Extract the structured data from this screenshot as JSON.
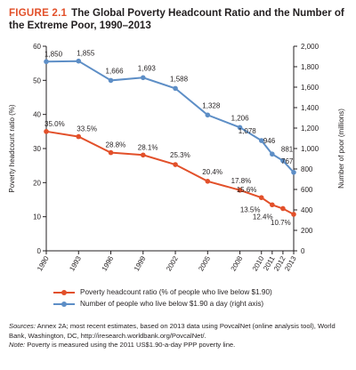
{
  "title": {
    "figure_label": "FIGURE 2.1",
    "text": "The Global Poverty Headcount Ratio and the Number of the Extreme Poor, 1990–2013"
  },
  "legend": {
    "ratio": "Poverty headcount ratio (% of people who live below $1.90)",
    "number": "Number of people who live below $1.90 a day (right axis)"
  },
  "sources": {
    "sources_label": "Sources:",
    "sources_text": "Annex 2A; most recent estimates, based on 2013 data using PovcalNet (online analysis tool), World Bank, Washington, DC, http://iresearch.worldbank.org/PovcalNet/.",
    "note_label": "Note:",
    "note_text": "Poverty is measured using the 2011 US$1.90-a-day PPP poverty line."
  },
  "colors": {
    "ratio": "#e2502a",
    "number": "#5d8ec6",
    "axis": "#231f20"
  },
  "chart_data": {
    "type": "line",
    "x": [
      1990,
      1993,
      1996,
      1999,
      2002,
      2005,
      2008,
      2010,
      2011,
      2012,
      2013
    ],
    "x_tick_labels": [
      "1990",
      "1993",
      "1996",
      "1999",
      "2002",
      "2005",
      "2008",
      "2010",
      "2011",
      "2012",
      "2013"
    ],
    "ylabel": "Poverty headcount ratio (%)",
    "y2label": "Number of poor (millions)",
    "ylim": [
      0,
      60
    ],
    "y_ticks": [
      0,
      10,
      20,
      30,
      40,
      50,
      60
    ],
    "y2lim": [
      0,
      2000
    ],
    "y2_ticks": [
      0,
      200,
      400,
      600,
      800,
      1000,
      1200,
      1400,
      1600,
      1800,
      2000
    ],
    "y2_tick_labels": [
      "0",
      "200",
      "400",
      "600",
      "800",
      "1,000",
      "1,200",
      "1,400",
      "1,600",
      "1,800",
      "2,000"
    ],
    "grid": false,
    "series": [
      {
        "key": "ratio",
        "axis": "left",
        "values": [
          35.0,
          33.5,
          28.8,
          28.1,
          25.3,
          20.4,
          17.8,
          15.6,
          13.5,
          12.4,
          10.7
        ],
        "labels": [
          "35.0%",
          "33.5%",
          "28.8%",
          "28.1%",
          "25.3%",
          "20.4%",
          "17.8%",
          "15.6%",
          "13.5%",
          "12.4%",
          "10.7%"
        ]
      },
      {
        "key": "number",
        "axis": "right",
        "values": [
          1850,
          1855,
          1666,
          1693,
          1588,
          1328,
          1206,
          1078,
          946,
          881,
          767
        ],
        "labels": [
          "1,850",
          "1,855",
          "1,666",
          "1,693",
          "1,588",
          "1,328",
          "1,206",
          "1,078",
          "946",
          "881",
          "767"
        ]
      }
    ]
  }
}
